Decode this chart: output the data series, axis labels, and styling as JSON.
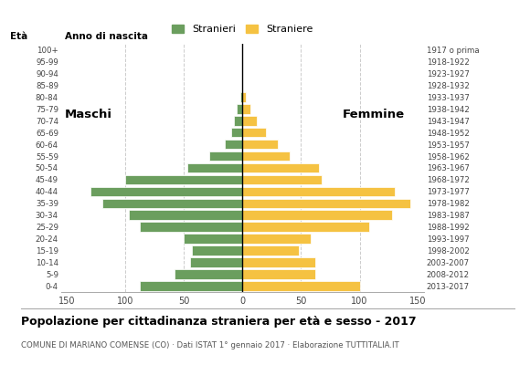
{
  "age_groups": [
    "0-4",
    "5-9",
    "10-14",
    "15-19",
    "20-24",
    "25-29",
    "30-34",
    "35-39",
    "40-44",
    "45-49",
    "50-54",
    "55-59",
    "60-64",
    "65-69",
    "70-74",
    "75-79",
    "80-84",
    "85-89",
    "90-94",
    "95-99",
    "100+"
  ],
  "birth_years": [
    "2013-2017",
    "2008-2012",
    "2003-2007",
    "1998-2002",
    "1993-1997",
    "1988-1992",
    "1983-1987",
    "1978-1982",
    "1973-1977",
    "1968-1972",
    "1963-1967",
    "1958-1962",
    "1953-1957",
    "1948-1952",
    "1943-1947",
    "1938-1942",
    "1933-1937",
    "1928-1932",
    "1923-1927",
    "1918-1922",
    "1917 o prima"
  ],
  "males": [
    88,
    58,
    45,
    43,
    50,
    88,
    97,
    120,
    130,
    100,
    47,
    28,
    15,
    10,
    7,
    5,
    2,
    0,
    0,
    0,
    0
  ],
  "females": [
    100,
    62,
    62,
    48,
    58,
    108,
    128,
    143,
    130,
    68,
    65,
    40,
    30,
    20,
    12,
    7,
    3,
    0,
    0,
    0,
    0
  ],
  "male_color": "#6b9e5e",
  "female_color": "#f5c242",
  "title": "Popolazione per cittadinanza straniera per età e sesso - 2017",
  "subtitle": "COMUNE DI MARIANO COMENSE (CO) · Dati ISTAT 1° gennaio 2017 · Elaborazione TUTTITALIA.IT",
  "label_eta": "Età",
  "label_anno": "Anno di nascita",
  "legend_male": "Stranieri",
  "legend_female": "Straniere",
  "label_maschi": "Maschi",
  "label_femmine": "Femmine",
  "xlim": 155,
  "background_color": "#ffffff",
  "grid_color": "#cccccc"
}
